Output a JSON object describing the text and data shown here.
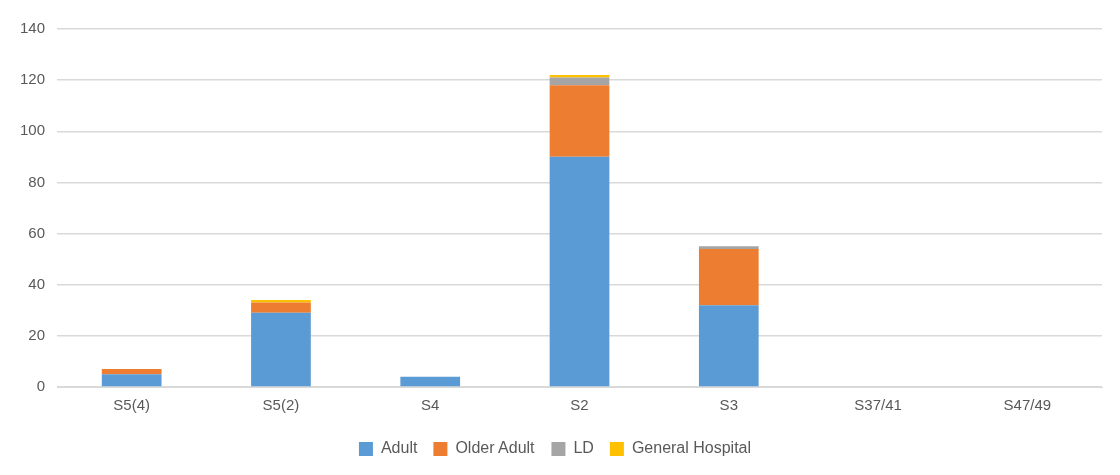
{
  "chart_data": {
    "type": "bar",
    "stacked": true,
    "categories": [
      "S5(4)",
      "S5(2)",
      "S4",
      "S2",
      "S3",
      "S37/41",
      "S47/49"
    ],
    "series": [
      {
        "name": "Adult",
        "color": "#5b9bd5",
        "values": [
          5,
          29,
          4,
          90,
          32,
          0,
          0
        ]
      },
      {
        "name": "Older Adult",
        "color": "#ed7d31",
        "values": [
          2,
          4,
          0,
          28,
          22,
          0,
          0
        ]
      },
      {
        "name": "LD",
        "color": "#a5a5a5",
        "values": [
          0,
          0,
          0,
          3,
          1,
          0,
          0
        ]
      },
      {
        "name": "General Hospital",
        "color": "#ffc000",
        "values": [
          0,
          1,
          0,
          1,
          0,
          0,
          0
        ]
      }
    ],
    "ylim": [
      0,
      140
    ],
    "yticks": [
      0,
      20,
      40,
      60,
      80,
      100,
      120,
      140
    ],
    "grid": "y",
    "legend": "bottom"
  }
}
